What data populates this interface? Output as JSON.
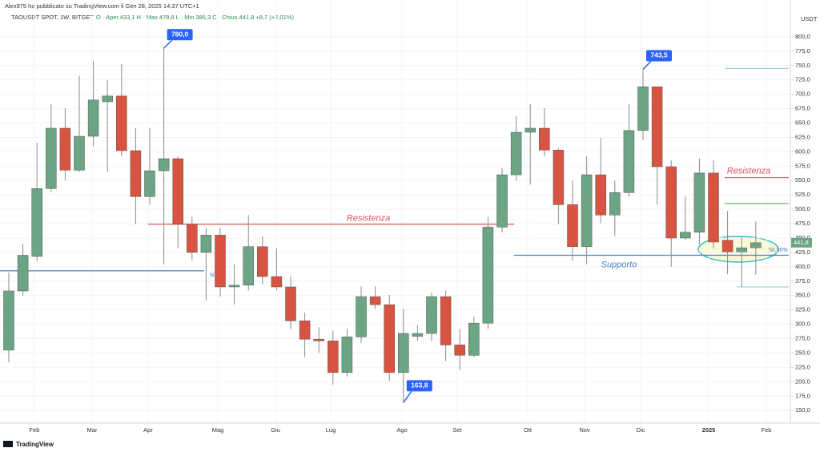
{
  "chart_data": {
    "type": "candlestick",
    "publisher": "Alex975 ha pubblicato su TradingView.com il Gen 28, 2025 14:37 UTC+1",
    "symbol": "TAOUSDT SPOT, 1W, BITGET",
    "ohlc_text": "O · Aper.433,1  H · Max.478,8  L · Min.386,3  C · Chius.441,8 +8,7 (+2,01%)",
    "currency": "USDT",
    "brand": "TradingView",
    "up_color": "#6ba583",
    "down_color": "#d75442",
    "open": [
      255,
      358,
      418,
      536,
      641,
      568,
      627,
      687,
      697,
      602,
      522,
      567,
      588,
      474,
      425,
      455,
      365,
      368,
      435,
      383,
      365,
      306,
      274,
      271,
      216,
      278,
      348,
      334,
      216,
      279,
      284,
      348,
      264,
      246,
      302,
      469,
      560,
      634,
      641,
      603,
      508,
      435,
      560,
      490,
      529,
      637,
      713,
      574,
      450,
      460,
      563,
      446,
      426,
      433.1
    ],
    "high": [
      390,
      440,
      616,
      683,
      676,
      732,
      758,
      725,
      753,
      641,
      641,
      780,
      592,
      487,
      467,
      467,
      404,
      490,
      453,
      432,
      383,
      320,
      295,
      289,
      292,
      366,
      366,
      351,
      327,
      299,
      355,
      359,
      292,
      313,
      487,
      571,
      662,
      683,
      676,
      606,
      550,
      592,
      624,
      550,
      683,
      743.5,
      713,
      585,
      522,
      588,
      585,
      497,
      453,
      478.8
    ],
    "low": [
      234,
      350,
      410,
      530,
      550,
      565,
      610,
      565,
      592,
      474,
      508,
      404,
      432,
      411,
      341,
      348,
      334,
      359,
      369,
      359,
      292,
      243,
      250,
      195,
      209,
      267,
      327,
      202,
      163.8,
      271,
      271,
      236,
      220,
      243,
      292,
      460,
      550,
      543,
      592,
      474,
      411,
      404,
      476,
      453,
      522,
      620,
      508,
      400,
      446,
      439,
      432,
      387,
      365,
      386.3
    ],
    "close": [
      358,
      420,
      536,
      641,
      568,
      627,
      690,
      697,
      602,
      522,
      567,
      588,
      474,
      425,
      455,
      365,
      368,
      435,
      383,
      365,
      306,
      274,
      271,
      216,
      278,
      348,
      334,
      216,
      284,
      284,
      348,
      264,
      246,
      302,
      469,
      560,
      634,
      641,
      603,
      508,
      435,
      560,
      490,
      529,
      637,
      713,
      574,
      450,
      460,
      563,
      443,
      426,
      433,
      441.8
    ],
    "months": [
      "Feb",
      "Mar",
      "Apr",
      "Mag",
      "Giu",
      "Lug",
      "Ago",
      "Set",
      "Ott",
      "Nov",
      "Dic",
      "2025",
      "Feb"
    ],
    "ylim": [
      128,
      864
    ],
    "yticks": [
      {
        "value": 150,
        "label": "150,0"
      },
      {
        "value": 175,
        "label": "175,0"
      },
      {
        "value": 200,
        "label": "200,0"
      },
      {
        "value": 225,
        "label": "225,0"
      },
      {
        "value": 250,
        "label": "250,0"
      },
      {
        "value": 275,
        "label": "275,0"
      },
      {
        "value": 300,
        "label": "300,0"
      },
      {
        "value": 325,
        "label": "325,0"
      },
      {
        "value": 350,
        "label": "350,0"
      },
      {
        "value": 375,
        "label": "375,0"
      },
      {
        "value": 400,
        "label": "400,0"
      },
      {
        "value": 425,
        "label": "425,0"
      },
      {
        "value": 450,
        "label": "450,0"
      },
      {
        "value": 475,
        "label": "475,0"
      },
      {
        "value": 500,
        "label": "500,0"
      },
      {
        "value": 525,
        "label": "525,0"
      },
      {
        "value": 550,
        "label": "550,0"
      },
      {
        "value": 575,
        "label": "575,0"
      },
      {
        "value": 600,
        "label": "600,0"
      },
      {
        "value": 625,
        "label": "625,0"
      },
      {
        "value": 650,
        "label": "650,0"
      },
      {
        "value": 675,
        "label": "675,0"
      },
      {
        "value": 700,
        "label": "700,0"
      },
      {
        "value": 725,
        "label": "725,0"
      },
      {
        "value": 750,
        "label": "750,0"
      },
      {
        "value": 775,
        "label": "775,0"
      },
      {
        "value": 800,
        "label": "800,0"
      }
    ],
    "last_price": {
      "value": 441.8,
      "label": "441,8"
    },
    "callouts": [
      {
        "value": 780,
        "label": "780,0"
      },
      {
        "value": 743.5,
        "label": "743,5"
      },
      {
        "value": 163.8,
        "label": "163,8"
      }
    ],
    "levels": [
      {
        "value": 474,
        "color": "#e0545c",
        "label": "Resistenza"
      },
      {
        "value": 393,
        "color": "#4a7fc1",
        "label": "50"
      },
      {
        "value": 420,
        "color": "#4a7fc1",
        "label": "Supporto"
      },
      {
        "value": 745,
        "color": "#9fd6dd"
      },
      {
        "value": 510,
        "color": "#4caf50"
      },
      {
        "value": 555,
        "color": "#e0545c",
        "label": "Resistenza"
      },
      {
        "value": 365,
        "color": "#9fd6dd"
      }
    ],
    "fib_label": "50,00%",
    "grid": true
  }
}
